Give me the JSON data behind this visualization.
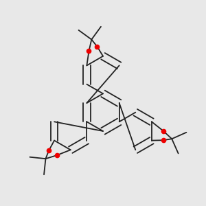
{
  "bg": "#e8e8e8",
  "bond_color": "#222222",
  "oxygen_color": "#ee0000",
  "lw": 1.3,
  "dbo": 0.018,
  "figsize": [
    3.0,
    3.0
  ],
  "dpi": 100
}
